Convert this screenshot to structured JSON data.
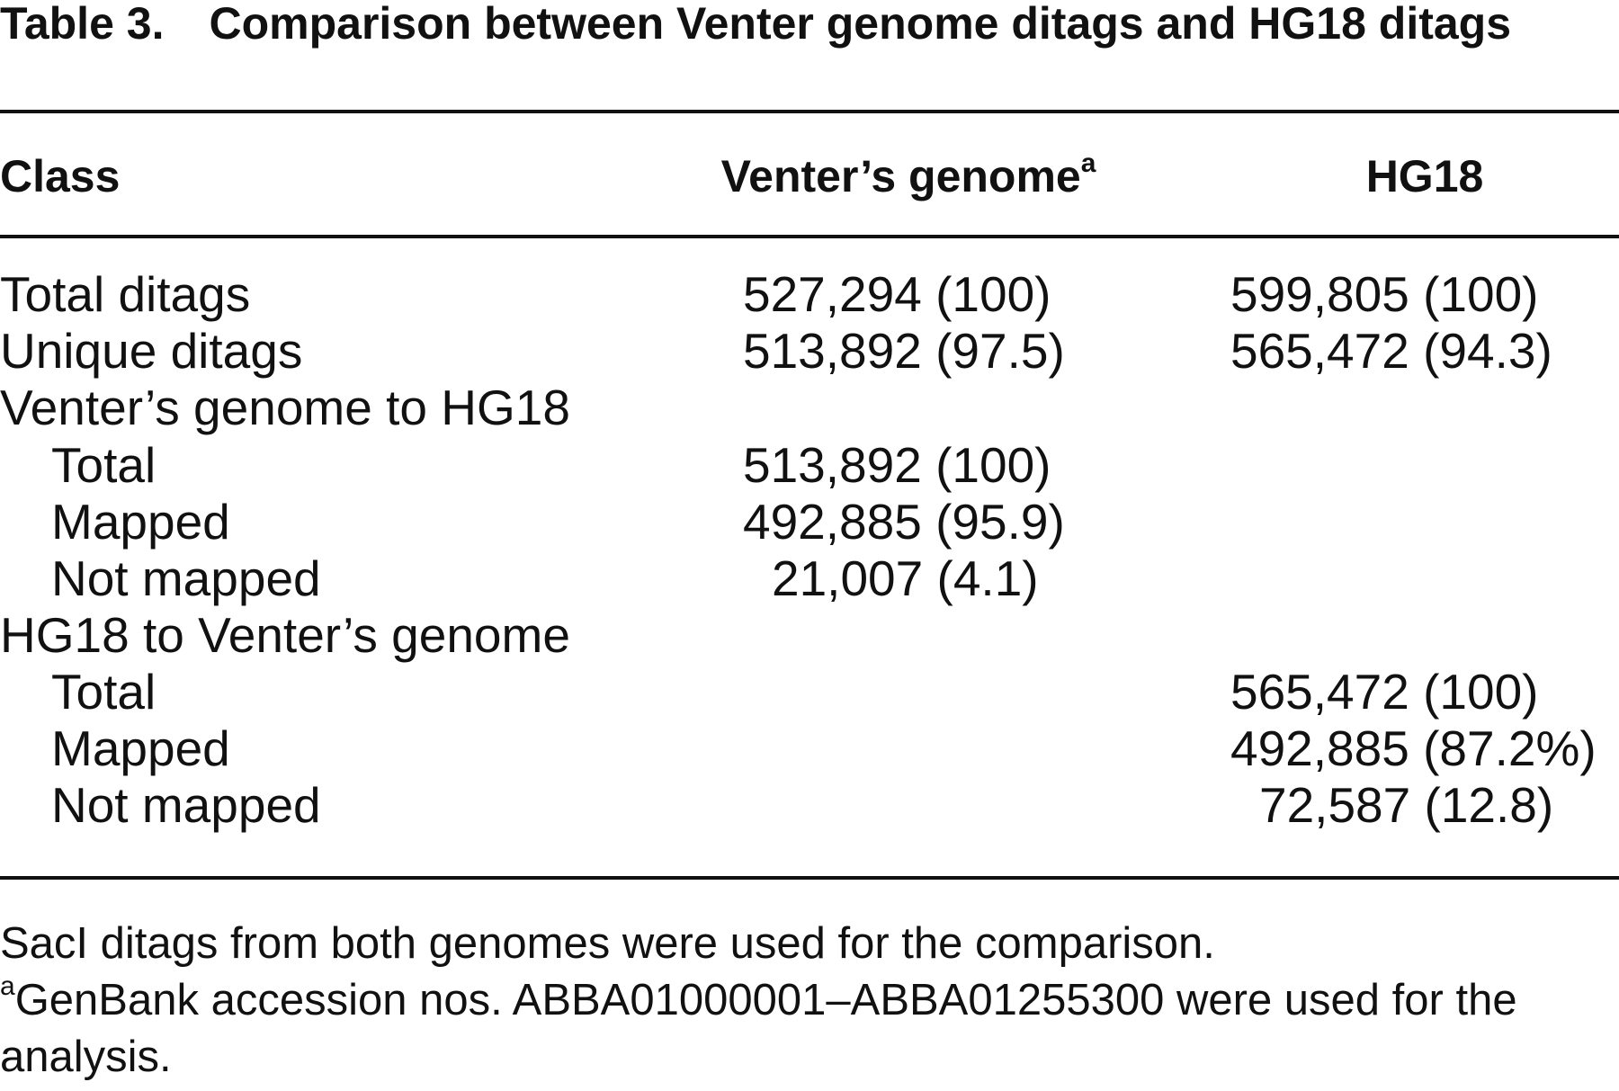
{
  "title": {
    "label": "Table 3.",
    "text": "Comparison between Venter genome ditags and HG18 ditags"
  },
  "table": {
    "columns": [
      "Class",
      "Venter’s genome",
      "HG18"
    ],
    "column_note": "a",
    "rows": [
      [
        "Total ditags",
        "527,294 (100)",
        "599,805 (100)"
      ],
      [
        "Unique ditags",
        "513,892 (97.5)",
        "565,472 (94.3)"
      ],
      [
        "Venter’s genome to HG18"
      ],
      [
        "Total",
        "513,892 (100)"
      ],
      [
        "Mapped",
        "492,885 (95.9)"
      ],
      [
        "Not mapped",
        "21,007 (4.1)"
      ],
      [
        "HG18 to Venter’s genome"
      ],
      [
        "Total",
        null,
        "565,472 (100)"
      ],
      [
        "Mapped",
        null,
        "492,885 (87.2%)"
      ],
      [
        "Not mapped",
        null,
        "72,587 (12.8)"
      ]
    ]
  },
  "footnotes": [
    "SacI ditags from both genomes were used for the comparison.",
    {
      "mark": "a",
      "text": "GenBank accession nos. ABBA01000001–ABBA01255300 were used for the analysis."
    }
  ]
}
